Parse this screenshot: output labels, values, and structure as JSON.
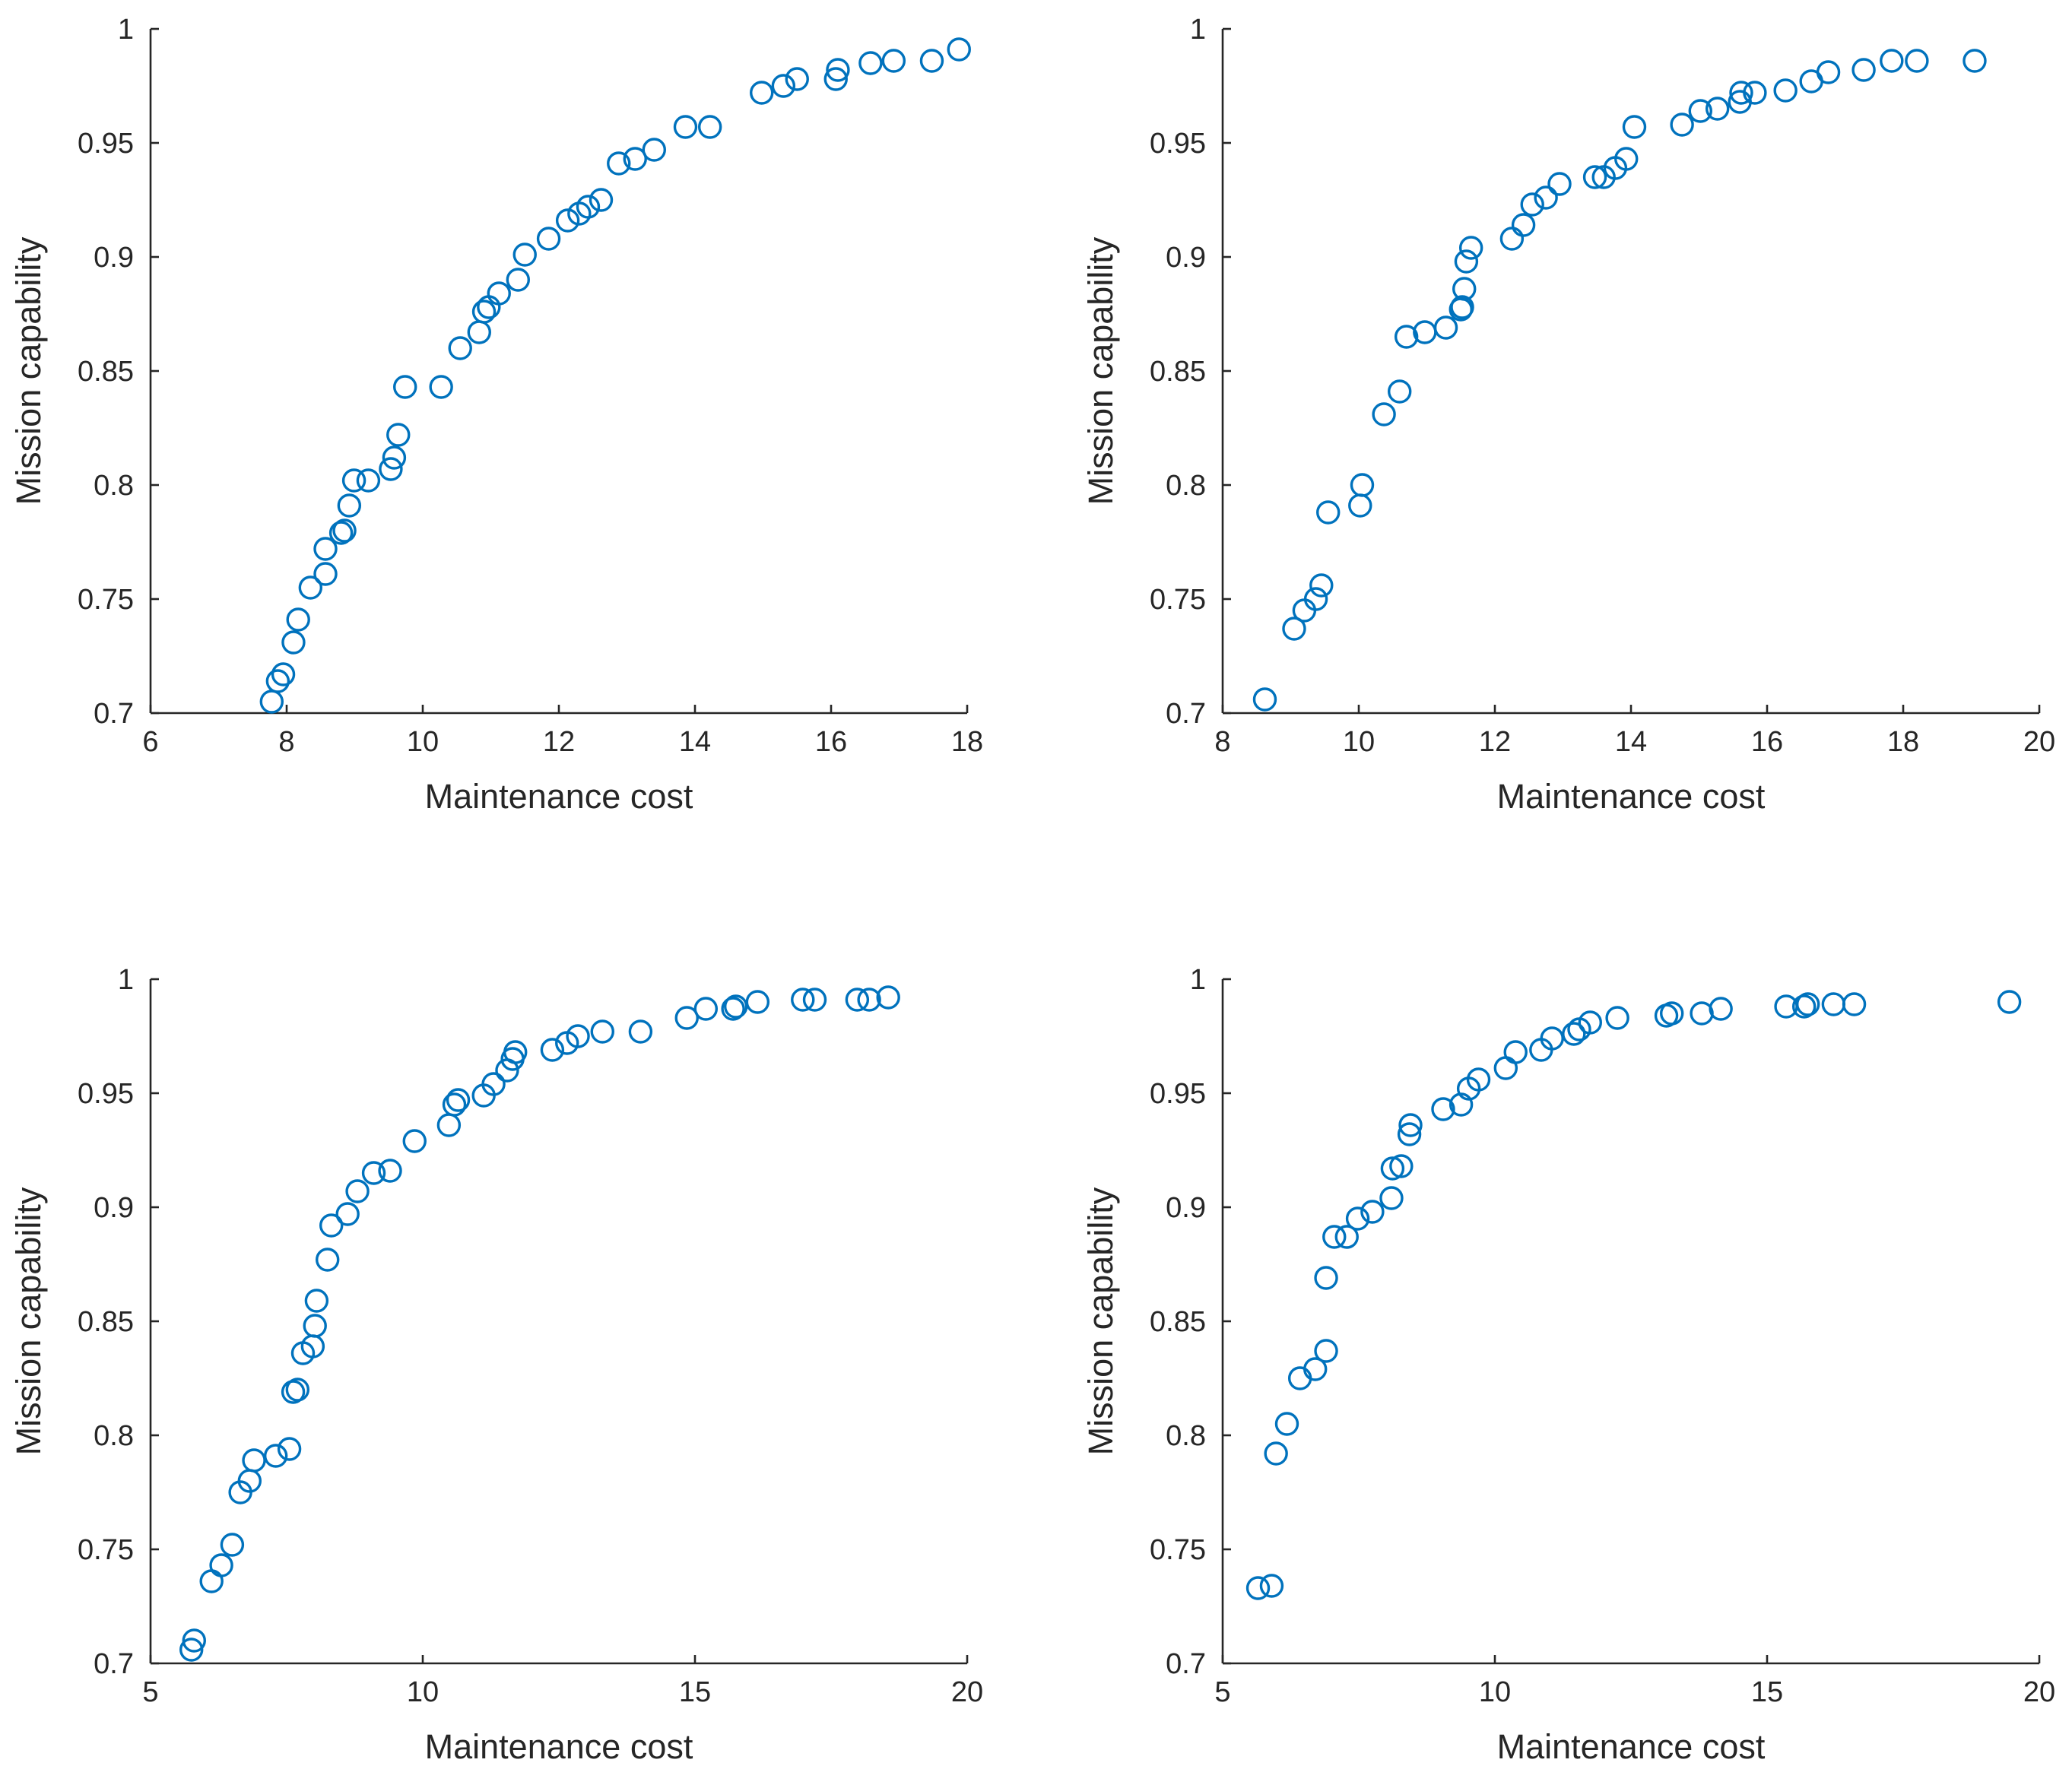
{
  "figure": {
    "colors": {
      "marker": "#0072BD",
      "axis": "#262626",
      "background": "#ffffff"
    }
  },
  "chart_data": [
    {
      "type": "scatter",
      "position": "top-left",
      "title": "",
      "xlabel": "Maintenance cost",
      "ylabel": "Mission capability",
      "xlim": [
        6,
        18
      ],
      "ylim": [
        0.7,
        1
      ],
      "xticks": [
        6,
        8,
        10,
        12,
        14,
        16,
        18
      ],
      "yticks": [
        0.7,
        0.75,
        0.8,
        0.85,
        0.9,
        0.95,
        1
      ],
      "xticklabels": [
        "6",
        "8",
        "10",
        "12",
        "14",
        "16",
        "18"
      ],
      "yticklabels": [
        "0.7",
        "0.75",
        "0.8",
        "0.85",
        "0.9",
        "0.95",
        "1"
      ],
      "grid": false,
      "marker": "circle",
      "points": [
        [
          7.78,
          0.705
        ],
        [
          7.87,
          0.714
        ],
        [
          7.95,
          0.717
        ],
        [
          8.1,
          0.731
        ],
        [
          8.17,
          0.741
        ],
        [
          8.35,
          0.755
        ],
        [
          8.57,
          0.761
        ],
        [
          8.57,
          0.772
        ],
        [
          8.8,
          0.779
        ],
        [
          8.85,
          0.78
        ],
        [
          8.92,
          0.791
        ],
        [
          8.99,
          0.802
        ],
        [
          9.2,
          0.802
        ],
        [
          9.53,
          0.807
        ],
        [
          9.58,
          0.812
        ],
        [
          9.64,
          0.822
        ],
        [
          9.74,
          0.843
        ],
        [
          10.27,
          0.843
        ],
        [
          10.55,
          0.86
        ],
        [
          10.83,
          0.867
        ],
        [
          10.9,
          0.876
        ],
        [
          10.97,
          0.878
        ],
        [
          11.12,
          0.884
        ],
        [
          11.4,
          0.89
        ],
        [
          11.5,
          0.901
        ],
        [
          11.85,
          0.908
        ],
        [
          12.13,
          0.916
        ],
        [
          12.3,
          0.919
        ],
        [
          12.43,
          0.922
        ],
        [
          12.62,
          0.925
        ],
        [
          12.88,
          0.941
        ],
        [
          13.12,
          0.943
        ],
        [
          13.4,
          0.947
        ],
        [
          13.86,
          0.957
        ],
        [
          14.22,
          0.957
        ],
        [
          14.98,
          0.972
        ],
        [
          15.3,
          0.975
        ],
        [
          15.5,
          0.978
        ],
        [
          16.07,
          0.978
        ],
        [
          16.1,
          0.982
        ],
        [
          16.58,
          0.985
        ],
        [
          16.92,
          0.986
        ],
        [
          17.48,
          0.986
        ],
        [
          17.88,
          0.991
        ]
      ]
    },
    {
      "type": "scatter",
      "position": "top-right",
      "title": "",
      "xlabel": "Maintenance cost",
      "ylabel": "Mission capability",
      "xlim": [
        8,
        20
      ],
      "ylim": [
        0.7,
        1
      ],
      "xticks": [
        8,
        10,
        12,
        14,
        16,
        18,
        20
      ],
      "yticks": [
        0.7,
        0.75,
        0.8,
        0.85,
        0.9,
        0.95,
        1
      ],
      "xticklabels": [
        "8",
        "10",
        "12",
        "14",
        "16",
        "18",
        "20"
      ],
      "yticklabels": [
        "0.7",
        "0.75",
        "0.8",
        "0.85",
        "0.9",
        "0.95",
        "1"
      ],
      "grid": false,
      "marker": "circle",
      "points": [
        [
          8.62,
          0.706
        ],
        [
          9.05,
          0.737
        ],
        [
          9.2,
          0.745
        ],
        [
          9.37,
          0.75
        ],
        [
          9.45,
          0.756
        ],
        [
          9.55,
          0.788
        ],
        [
          10.02,
          0.791
        ],
        [
          10.05,
          0.8
        ],
        [
          10.37,
          0.831
        ],
        [
          10.6,
          0.841
        ],
        [
          10.7,
          0.865
        ],
        [
          10.97,
          0.867
        ],
        [
          11.28,
          0.869
        ],
        [
          11.5,
          0.877
        ],
        [
          11.52,
          0.878
        ],
        [
          11.55,
          0.886
        ],
        [
          11.58,
          0.898
        ],
        [
          11.65,
          0.904
        ],
        [
          12.25,
          0.908
        ],
        [
          12.42,
          0.914
        ],
        [
          12.55,
          0.923
        ],
        [
          12.75,
          0.926
        ],
        [
          12.95,
          0.932
        ],
        [
          13.47,
          0.935
        ],
        [
          13.6,
          0.935
        ],
        [
          13.77,
          0.939
        ],
        [
          13.93,
          0.943
        ],
        [
          14.05,
          0.957
        ],
        [
          14.75,
          0.958
        ],
        [
          15.02,
          0.964
        ],
        [
          15.27,
          0.965
        ],
        [
          15.6,
          0.968
        ],
        [
          15.62,
          0.972
        ],
        [
          15.82,
          0.972
        ],
        [
          16.27,
          0.973
        ],
        [
          16.65,
          0.977
        ],
        [
          16.9,
          0.981
        ],
        [
          17.42,
          0.982
        ],
        [
          17.83,
          0.986
        ],
        [
          18.2,
          0.986
        ],
        [
          19.05,
          0.986
        ]
      ]
    },
    {
      "type": "scatter",
      "position": "bottom-left",
      "title": "",
      "xlabel": "Maintenance cost",
      "ylabel": "Mission capability",
      "xlim": [
        5,
        20
      ],
      "ylim": [
        0.7,
        1
      ],
      "xticks": [
        5,
        10,
        15,
        20
      ],
      "yticks": [
        0.7,
        0.75,
        0.8,
        0.85,
        0.9,
        0.95,
        1
      ],
      "xticklabels": [
        "5",
        "10",
        "15",
        "20"
      ],
      "yticklabels": [
        "0.7",
        "0.75",
        "0.8",
        "0.85",
        "0.9",
        "0.95",
        "1"
      ],
      "grid": false,
      "marker": "circle",
      "points": [
        [
          5.75,
          0.706
        ],
        [
          5.8,
          0.71
        ],
        [
          6.12,
          0.736
        ],
        [
          6.3,
          0.743
        ],
        [
          6.5,
          0.752
        ],
        [
          6.65,
          0.775
        ],
        [
          6.82,
          0.78
        ],
        [
          6.9,
          0.789
        ],
        [
          7.3,
          0.791
        ],
        [
          7.55,
          0.794
        ],
        [
          7.62,
          0.819
        ],
        [
          7.7,
          0.82
        ],
        [
          7.8,
          0.836
        ],
        [
          7.98,
          0.839
        ],
        [
          8.02,
          0.848
        ],
        [
          8.05,
          0.859
        ],
        [
          8.25,
          0.877
        ],
        [
          8.32,
          0.892
        ],
        [
          8.62,
          0.897
        ],
        [
          8.8,
          0.907
        ],
        [
          9.1,
          0.915
        ],
        [
          9.4,
          0.916
        ],
        [
          9.85,
          0.929
        ],
        [
          10.48,
          0.936
        ],
        [
          10.58,
          0.945
        ],
        [
          10.65,
          0.947
        ],
        [
          11.12,
          0.949
        ],
        [
          11.3,
          0.954
        ],
        [
          11.55,
          0.96
        ],
        [
          11.65,
          0.965
        ],
        [
          11.7,
          0.968
        ],
        [
          12.38,
          0.969
        ],
        [
          12.65,
          0.972
        ],
        [
          12.85,
          0.975
        ],
        [
          13.3,
          0.977
        ],
        [
          14.0,
          0.977
        ],
        [
          14.85,
          0.983
        ],
        [
          15.2,
          0.987
        ],
        [
          15.7,
          0.987
        ],
        [
          15.75,
          0.988
        ],
        [
          16.15,
          0.99
        ],
        [
          16.98,
          0.991
        ],
        [
          17.2,
          0.991
        ],
        [
          17.98,
          0.991
        ],
        [
          18.2,
          0.991
        ],
        [
          18.55,
          0.992
        ]
      ]
    },
    {
      "type": "scatter",
      "position": "bottom-right",
      "title": "",
      "xlabel": "Maintenance cost",
      "ylabel": "Mission capability",
      "xlim": [
        5,
        20
      ],
      "ylim": [
        0.7,
        1
      ],
      "xticks": [
        5,
        10,
        15,
        20
      ],
      "yticks": [
        0.7,
        0.75,
        0.8,
        0.85,
        0.9,
        0.95,
        1
      ],
      "xticklabels": [
        "5",
        "10",
        "15",
        "20"
      ],
      "yticklabels": [
        "0.7",
        "0.75",
        "0.8",
        "0.85",
        "0.9",
        "0.95",
        "1"
      ],
      "grid": false,
      "marker": "circle",
      "points": [
        [
          5.65,
          0.733
        ],
        [
          5.9,
          0.734
        ],
        [
          5.98,
          0.792
        ],
        [
          6.18,
          0.805
        ],
        [
          6.42,
          0.825
        ],
        [
          6.7,
          0.829
        ],
        [
          6.9,
          0.837
        ],
        [
          6.9,
          0.869
        ],
        [
          7.05,
          0.887
        ],
        [
          7.28,
          0.887
        ],
        [
          7.48,
          0.895
        ],
        [
          7.75,
          0.898
        ],
        [
          8.1,
          0.904
        ],
        [
          8.12,
          0.917
        ],
        [
          8.28,
          0.918
        ],
        [
          8.43,
          0.932
        ],
        [
          8.45,
          0.936
        ],
        [
          9.05,
          0.943
        ],
        [
          9.38,
          0.945
        ],
        [
          9.52,
          0.952
        ],
        [
          9.7,
          0.956
        ],
        [
          10.2,
          0.961
        ],
        [
          10.38,
          0.968
        ],
        [
          10.85,
          0.969
        ],
        [
          11.05,
          0.974
        ],
        [
          11.45,
          0.976
        ],
        [
          11.55,
          0.978
        ],
        [
          11.75,
          0.981
        ],
        [
          12.25,
          0.983
        ],
        [
          13.15,
          0.984
        ],
        [
          13.25,
          0.985
        ],
        [
          13.8,
          0.985
        ],
        [
          14.15,
          0.987
        ],
        [
          15.35,
          0.988
        ],
        [
          15.68,
          0.988
        ],
        [
          15.75,
          0.989
        ],
        [
          16.22,
          0.989
        ],
        [
          16.6,
          0.989
        ],
        [
          19.45,
          0.99
        ]
      ]
    }
  ]
}
